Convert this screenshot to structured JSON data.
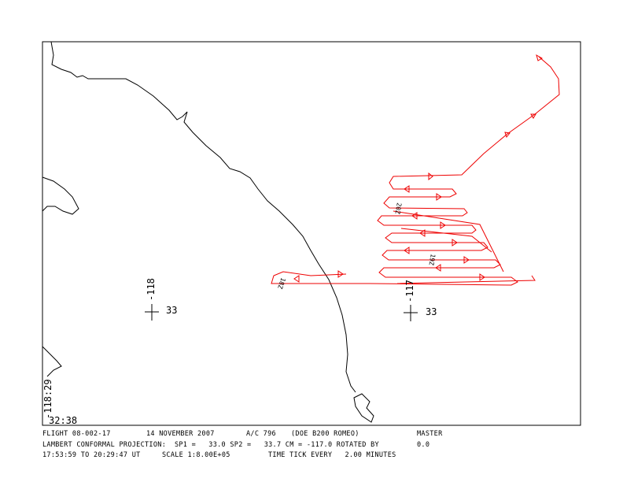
{
  "map": {
    "grid_labels": [
      "-118",
      "33",
      "-117",
      "33",
      "-118:29",
      "32:38"
    ],
    "time_labels": [
      "18Z",
      "19Z",
      "20Z"
    ]
  },
  "footer": {
    "line1": [
      "FLIGHT 08-002-17",
      "14 NOVEMBER 2007",
      "A/C 796",
      "(DOE B200 ROMEO)",
      "MASTER"
    ],
    "line2": [
      "LAMBERT CONFORMAL PROJECTION:  SP1 =   33.0 SP2 =   33.7 CM = -117.0 ROTATED BY",
      "0.0"
    ],
    "line3": [
      "17:53:59 TO 20:29:47 UT",
      "SCALE 1:8.00E+05",
      "TIME TICK EVERY   2.00 MINUTES"
    ]
  }
}
